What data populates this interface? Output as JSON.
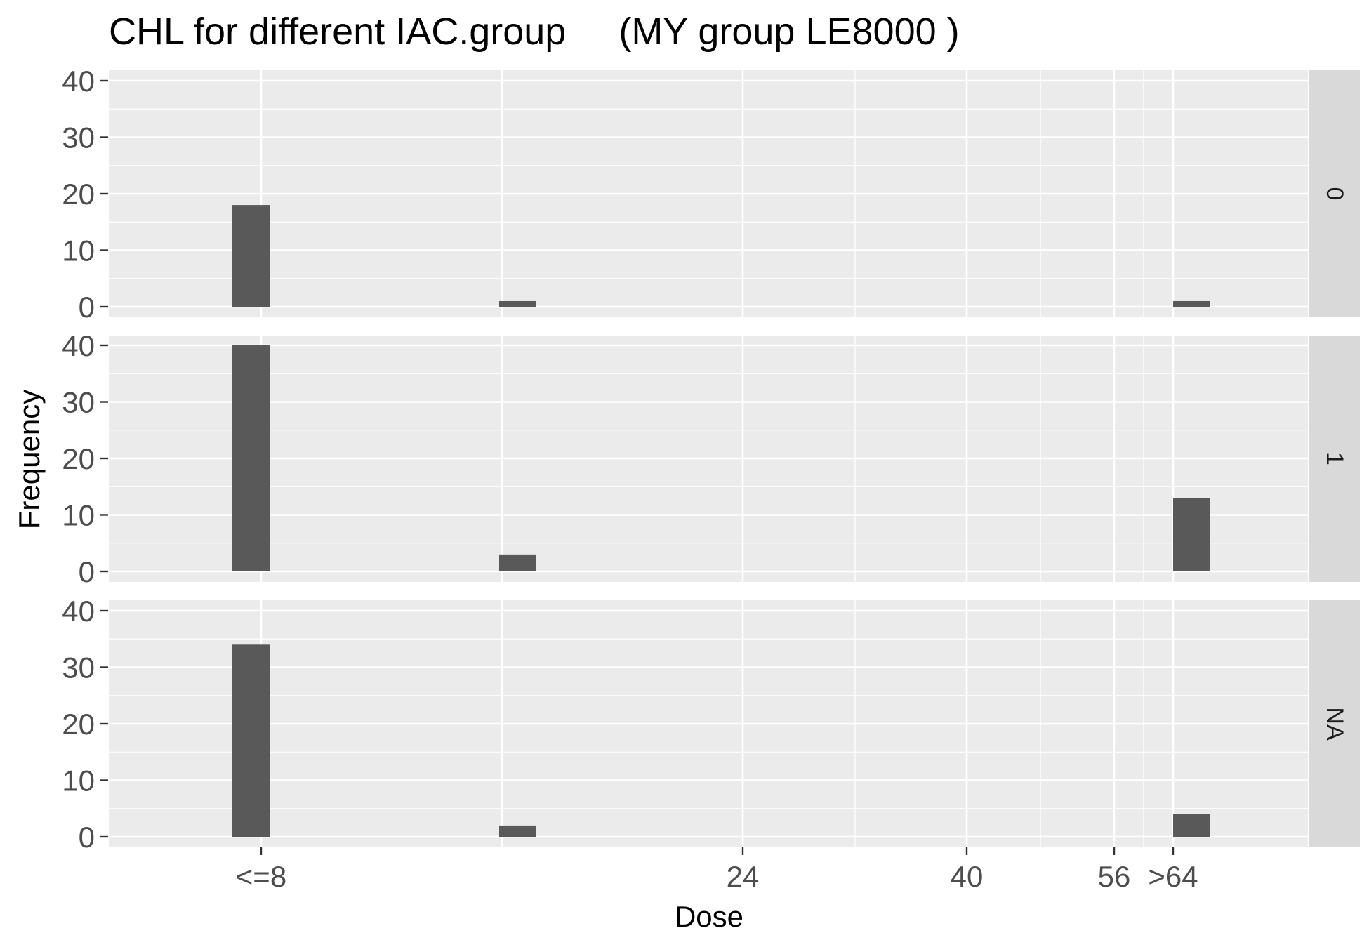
{
  "chart_data": {
    "type": "bar",
    "title": "CHL for different IAC.group     (MY group LE8000 )",
    "xlabel": "Dose",
    "ylabel": "Frequency",
    "x_ticks": [
      {
        "value": 8,
        "label": "<=8"
      },
      {
        "value": 24,
        "label": "24"
      },
      {
        "value": 40,
        "label": "40"
      },
      {
        "value": 56,
        "label": "56"
      },
      {
        "value": 64,
        "label": ">64"
      }
    ],
    "y_ticks": [
      0,
      10,
      20,
      30,
      40
    ],
    "ylim": [
      0,
      40
    ],
    "grid": true,
    "facets": [
      {
        "label": "0",
        "bars": [
          {
            "x": 8,
            "count": 18
          },
          {
            "x": 16,
            "count": 1
          },
          {
            "x": 64,
            "count": 1
          }
        ]
      },
      {
        "label": "1",
        "bars": [
          {
            "x": 8,
            "count": 40
          },
          {
            "x": 16,
            "count": 3
          },
          {
            "x": 64,
            "count": 13
          }
        ]
      },
      {
        "label": "NA",
        "bars": [
          {
            "x": 8,
            "count": 34
          },
          {
            "x": 16,
            "count": 2
          },
          {
            "x": 64,
            "count": 4
          }
        ]
      }
    ],
    "colors": {
      "bar": "#595959",
      "panel_background": "#ebebeb",
      "grid": "#ffffff",
      "strip_background": "#d9d9d9"
    }
  }
}
